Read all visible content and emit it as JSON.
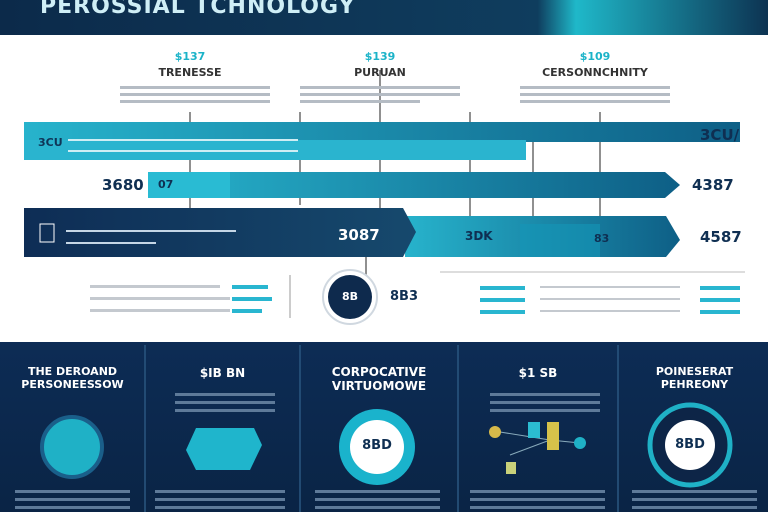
{
  "header": {
    "title": "PEROSSIAL TCHNOLOGY"
  },
  "columns": [
    {
      "value": "$137",
      "label": "TRENESSE"
    },
    {
      "value": "$139",
      "label": "PURUAN"
    },
    {
      "value": "$109",
      "label": "CERSONNCHNITY"
    }
  ],
  "bars": {
    "row1_left": "3CU",
    "row1_right": "3CU/",
    "row2_left": "3680",
    "row2_inner": "07",
    "row2_right": "4387",
    "row3_segments": [
      "3087",
      "3DK",
      "83"
    ],
    "row3_right": "4587"
  },
  "circle": {
    "label": "8B",
    "value": "8B3"
  },
  "panels": [
    {
      "title": "THE DEROAND\nPERSONEESSOW"
    },
    {
      "title": "$IB BN"
    },
    {
      "title": "CORPOCATIVE\nVIRTUOMOWE",
      "badge": "8BD"
    },
    {
      "title": "$1 SB"
    },
    {
      "title": "POINESERAT\nPEHREONY",
      "badge": "8BD"
    }
  ]
}
